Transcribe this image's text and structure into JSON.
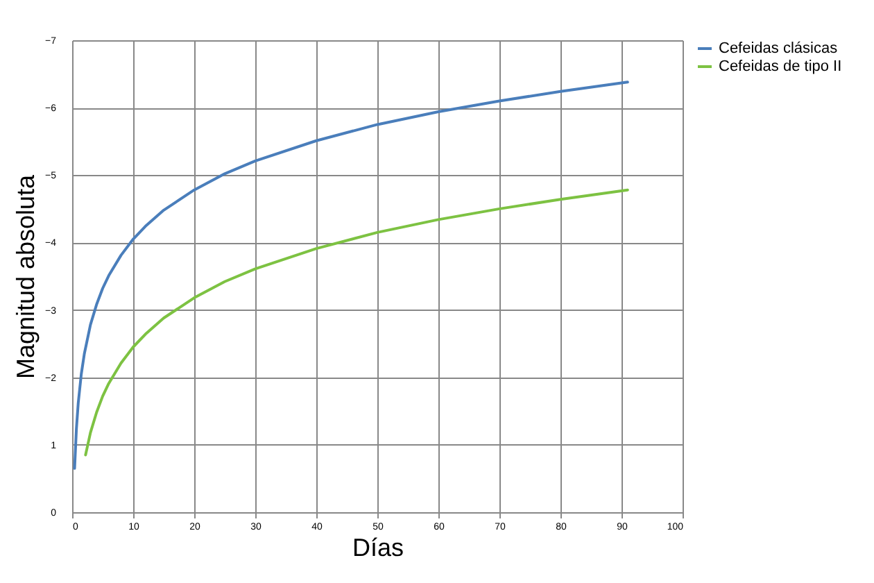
{
  "chart_data": {
    "type": "line",
    "xlabel": "Días",
    "ylabel": "Magnitud absoluta",
    "xlim": [
      0,
      100
    ],
    "xticks": [
      0,
      10,
      20,
      30,
      40,
      50,
      60,
      70,
      80,
      90,
      100
    ],
    "ylim": [
      0,
      -7
    ],
    "yticks": [
      0,
      {
        "value": -1,
        "label": "1"
      },
      -2,
      -3,
      -4,
      -5,
      -6,
      -7
    ],
    "grid": true,
    "legend": "right",
    "marker": "none",
    "line_style": "solid",
    "series": [
      {
        "name": "Cefeidas clásicas",
        "color": "#4a7ebb",
        "x": [
          0.4,
          0.7,
          1,
          1.5,
          2,
          3,
          4,
          5,
          6,
          8,
          10,
          12,
          15,
          20,
          25,
          30,
          40,
          50,
          60,
          70,
          80,
          91
        ],
        "values": [
          -0.65,
          -1.24,
          -1.62,
          -2.05,
          -2.35,
          -2.78,
          -3.08,
          -3.32,
          -3.51,
          -3.81,
          -4.05,
          -4.24,
          -4.48,
          -4.78,
          -5.02,
          -5.21,
          -5.51,
          -5.75,
          -5.94,
          -6.1,
          -6.24,
          -6.38
        ]
      },
      {
        "name": "Cefeidas de tipo II",
        "color": "#7dc242",
        "x": [
          2.2,
          3,
          4,
          5,
          6,
          8,
          10,
          12,
          15,
          20,
          25,
          30,
          40,
          50,
          60,
          70,
          80,
          91
        ],
        "values": [
          -0.85,
          -1.18,
          -1.48,
          -1.72,
          -1.91,
          -2.21,
          -2.45,
          -2.64,
          -2.88,
          -3.18,
          -3.42,
          -3.61,
          -3.91,
          -4.15,
          -4.34,
          -4.5,
          -4.64,
          -4.78
        ]
      }
    ]
  }
}
